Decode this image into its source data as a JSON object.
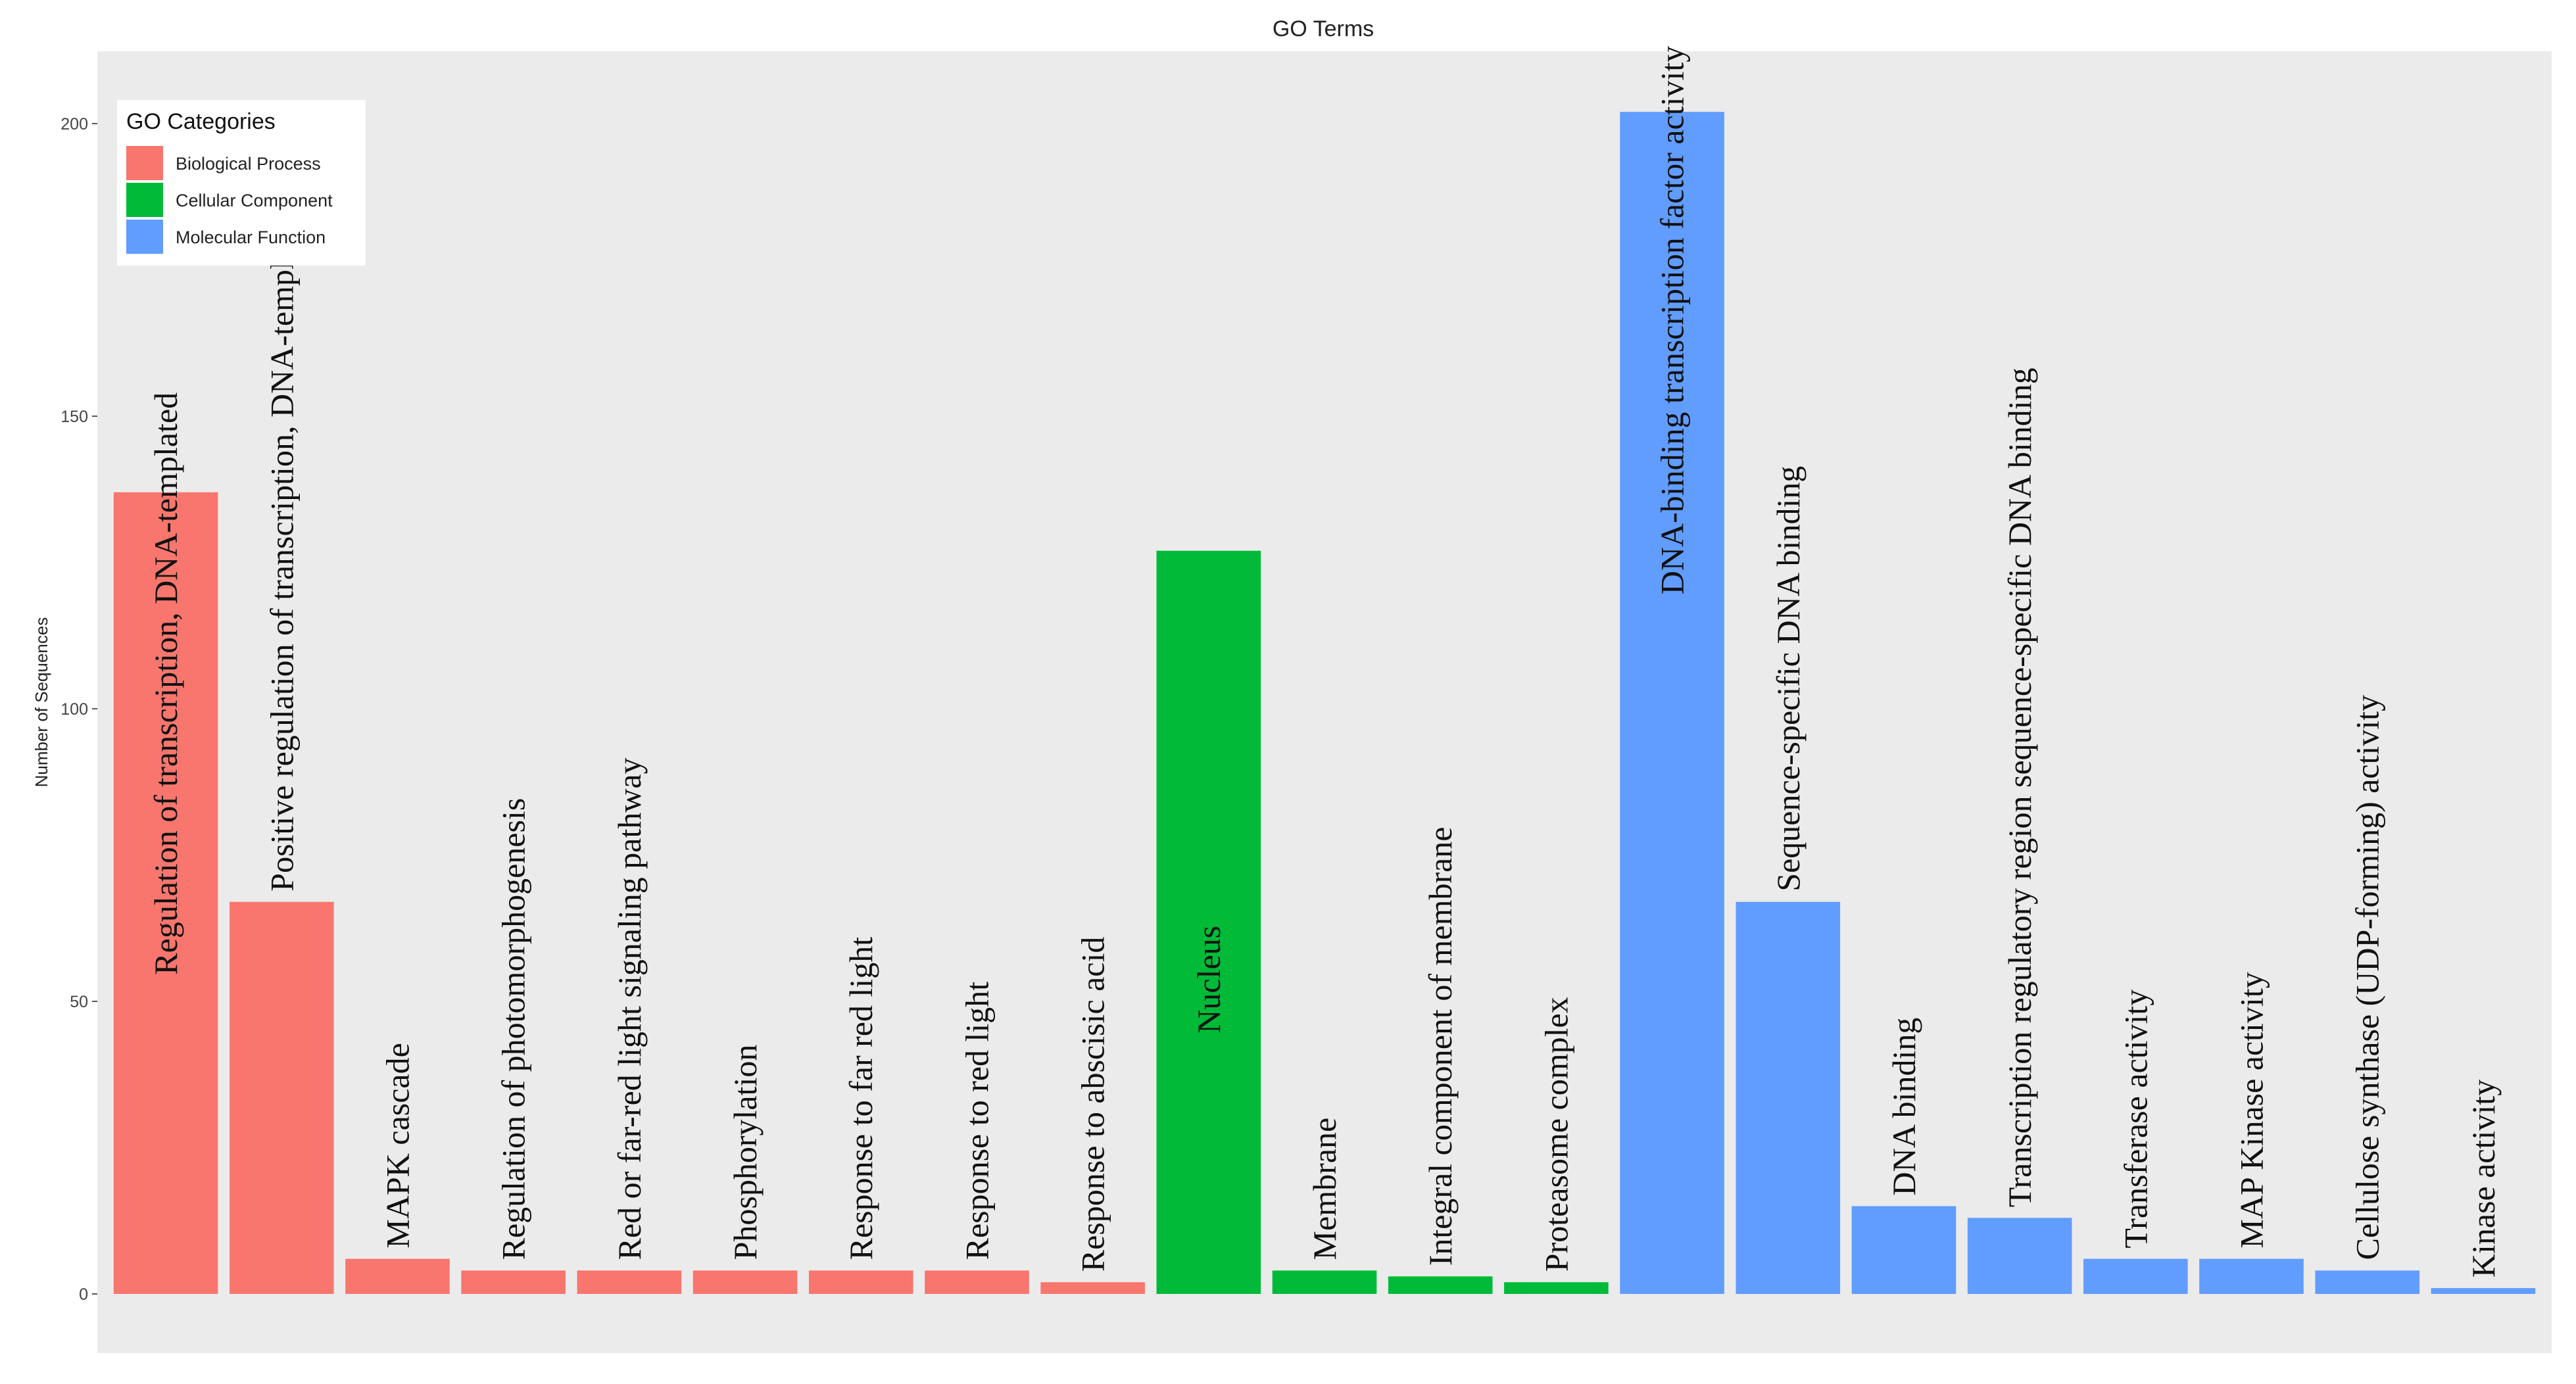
{
  "chart_data": {
    "type": "bar",
    "title": "GO Terms",
    "xlabel": "",
    "ylabel": "Number of Sequences",
    "ylim": [
      0,
      210
    ],
    "yticks": [
      0,
      50,
      100,
      150,
      200
    ],
    "grid": false,
    "legend": {
      "title": "GO Categories",
      "position": "top-left",
      "entries": [
        {
          "label": "Biological Process",
          "color": "#F8766D"
        },
        {
          "label": "Cellular Component",
          "color": "#00BA38"
        },
        {
          "label": "Molecular Function",
          "color": "#619CFF"
        }
      ]
    },
    "bars": [
      {
        "label": "Regulation of transcription, DNA-templated",
        "value": 137,
        "category": 0
      },
      {
        "label": "Positive regulation of transcription, DNA-templated",
        "value": 67,
        "category": 0
      },
      {
        "label": "MAPK cascade",
        "value": 6,
        "category": 0
      },
      {
        "label": "Regulation of photomorphogenesis",
        "value": 4,
        "category": 0
      },
      {
        "label": "Red or far-red light signaling pathway",
        "value": 4,
        "category": 0
      },
      {
        "label": "Phosphorylation",
        "value": 4,
        "category": 0
      },
      {
        "label": "Response to far red light",
        "value": 4,
        "category": 0
      },
      {
        "label": "Response to  red light",
        "value": 4,
        "category": 0
      },
      {
        "label": "Response to abscisic acid",
        "value": 2,
        "category": 0
      },
      {
        "label": "Nucleus",
        "value": 127,
        "category": 1
      },
      {
        "label": "Membrane",
        "value": 4,
        "category": 1
      },
      {
        "label": "Integral component of membrane",
        "value": 3,
        "category": 1
      },
      {
        "label": "Proteasome complex",
        "value": 2,
        "category": 1
      },
      {
        "label": "DNA-binding transcription factor activity",
        "value": 202,
        "category": 2
      },
      {
        "label": "Sequence-specific DNA binding",
        "value": 67,
        "category": 2
      },
      {
        "label": "DNA binding",
        "value": 15,
        "category": 2
      },
      {
        "label": "Transcription regulatory region sequence-specific DNA binding",
        "value": 13,
        "category": 2
      },
      {
        "label": "Transferase activity",
        "value": 6,
        "category": 2
      },
      {
        "label": "MAP Kinase activity",
        "value": 6,
        "category": 2
      },
      {
        "label": "Cellulose synthase (UDP-forming) activity",
        "value": 4,
        "category": 2
      },
      {
        "label": "Kinase activity",
        "value": 1,
        "category": 2
      }
    ]
  }
}
